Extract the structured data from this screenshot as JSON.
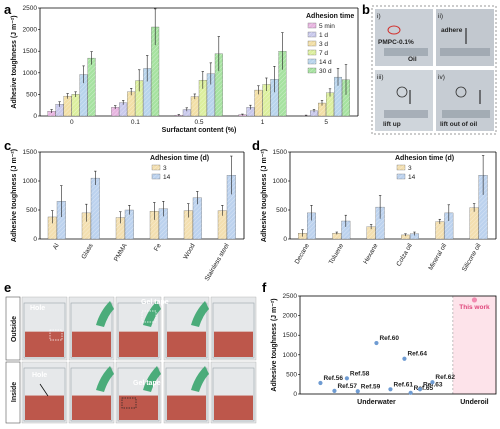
{
  "panel_labels": {
    "a": "a",
    "b": "b",
    "c": "c",
    "d": "d",
    "e": "e",
    "f": "f"
  },
  "colors": {
    "c5min": "#e7b4e0",
    "c1d": "#c9c9ec",
    "c3d": "#f2dfa6",
    "c7d": "#dcef9e",
    "c14d": "#b8d4ec",
    "c30d": "#a6e2a0",
    "c3": "#f3dfb0",
    "c14": "#bcd2ee",
    "pink": "#f28ab0",
    "dot": "#6e9bd2",
    "photo_red": "#b8473a"
  },
  "chart_data": [
    {
      "id": "a",
      "type": "bar",
      "ylabel": "Adhesive toughness (J m⁻²)",
      "xlabel": "Surfactant content (%)",
      "ylim": [
        0,
        2500
      ],
      "yticks": [
        0,
        500,
        1000,
        1500,
        2000,
        2500
      ],
      "categories": [
        "0",
        "0.1",
        "0.5",
        "1",
        "5"
      ],
      "legend_title": "Adhesion time",
      "series": [
        {
          "name": "5 min",
          "values": [
            110,
            200,
            20,
            30,
            10
          ],
          "err": [
            40,
            40,
            15,
            15,
            10
          ]
        },
        {
          "name": "1 d",
          "values": [
            270,
            310,
            150,
            200,
            120
          ],
          "err": [
            60,
            50,
            40,
            50,
            30
          ]
        },
        {
          "name": "3 d",
          "values": [
            460,
            560,
            450,
            600,
            300
          ],
          "err": [
            60,
            80,
            60,
            100,
            60
          ]
        },
        {
          "name": "7 d",
          "values": [
            500,
            820,
            830,
            730,
            540
          ],
          "err": [
            60,
            250,
            200,
            150,
            90
          ]
        },
        {
          "name": "14 d",
          "values": [
            960,
            1100,
            980,
            850,
            900
          ],
          "err": [
            200,
            300,
            250,
            300,
            200
          ]
        },
        {
          "name": "30 d",
          "values": [
            1340,
            2060,
            1440,
            1500,
            840
          ],
          "err": [
            150,
            420,
            400,
            430,
            350
          ]
        }
      ]
    },
    {
      "id": "c",
      "type": "bar",
      "ylabel": "Adhesive toughness (J m⁻²)",
      "ylim": [
        0,
        1500
      ],
      "yticks": [
        0,
        500,
        1000,
        1500
      ],
      "categories": [
        "Al",
        "Glass",
        "PMMA",
        "Fe",
        "Wood",
        "Stainless steel"
      ],
      "legend_title": "Adhesion time (d)",
      "series": [
        {
          "name": "3",
          "values": [
            380,
            450,
            370,
            480,
            490,
            490
          ],
          "err": [
            110,
            150,
            100,
            150,
            120,
            90
          ]
        },
        {
          "name": "14",
          "values": [
            650,
            1050,
            500,
            520,
            710,
            1100
          ],
          "err": [
            270,
            120,
            80,
            130,
            110,
            330
          ]
        }
      ]
    },
    {
      "id": "d",
      "type": "bar",
      "ylabel": "Adhesive toughness (J m⁻²)",
      "ylim": [
        0,
        1500
      ],
      "yticks": [
        0,
        500,
        1000,
        1500
      ],
      "categories": [
        "Decane",
        "Toluene",
        "Hexane",
        "Colza oil",
        "Mineral oil",
        "Silicone oil"
      ],
      "legend_title": "Adhesion time (d)",
      "series": [
        {
          "name": "3",
          "values": [
            100,
            100,
            210,
            70,
            300,
            540
          ],
          "err": [
            60,
            20,
            40,
            20,
            40,
            70
          ]
        },
        {
          "name": "14",
          "values": [
            450,
            310,
            550,
            90,
            450,
            1100
          ],
          "err": [
            130,
            100,
            200,
            30,
            140,
            340
          ]
        }
      ]
    },
    {
      "id": "f",
      "type": "scatter",
      "ylabel": "Adhesive toughness (J m⁻²)",
      "ylim": [
        0,
        2500
      ],
      "yticks": [
        0,
        500,
        1000,
        1500,
        2000,
        2500
      ],
      "categories": [
        "Underwater",
        "Underoil"
      ],
      "points": [
        {
          "label": "Ref.56",
          "x": 0.9,
          "y": 280
        },
        {
          "label": "Ref.57",
          "x": 1.35,
          "y": 80
        },
        {
          "label": "Ref.58",
          "x": 1.75,
          "y": 400
        },
        {
          "label": "Ref.59",
          "x": 2.1,
          "y": 70
        },
        {
          "label": "Ref.60",
          "x": 2.7,
          "y": 1300
        },
        {
          "label": "Ref.61",
          "x": 3.15,
          "y": 120
        },
        {
          "label": "Ref.64",
          "x": 3.6,
          "y": 900
        },
        {
          "label": "Ref.65",
          "x": 3.8,
          "y": 30
        },
        {
          "label": "Ref.63",
          "x": 4.1,
          "y": 120
        },
        {
          "label": "Ref.62",
          "x": 4.5,
          "y": 300
        }
      ],
      "this_work": {
        "label": "This work",
        "y": 2400
      }
    }
  ],
  "panel_b": {
    "i": "i)",
    "ii": "ii)",
    "iii": "iii)",
    "iv": "iv)",
    "pmpc": "PMPC-0.1%",
    "oil": "Oil",
    "adhere": "adhere",
    "lift_up": "lift up",
    "lift_out": "lift out of oil"
  },
  "panel_e": {
    "outside": "Outside",
    "inside": "Inside",
    "hole_top": "Hole",
    "gel_tape_top": "Gel tape",
    "hole_bottom": "Hole",
    "gel_tape_bottom": "Gel tape"
  }
}
